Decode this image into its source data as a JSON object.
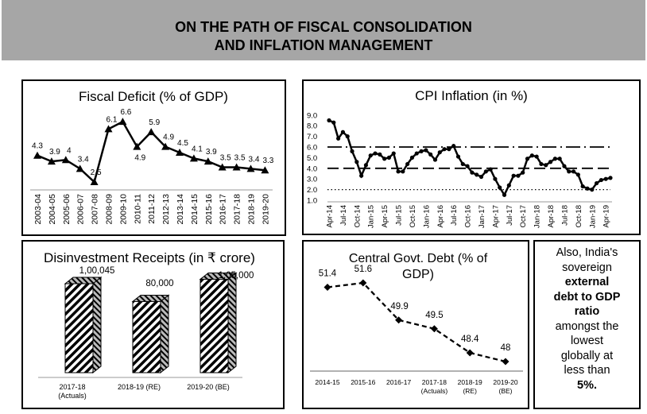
{
  "header": {
    "line1": "ON THE PATH OF FISCAL CONSOLIDATION",
    "line2": "AND INFLATION MANAGEMENT"
  },
  "note": {
    "t1": "Also, India's",
    "t2": "sovereign",
    "b1": "external",
    "b2": "debt to GDP",
    "b3": "ratio",
    "t3": "amongst the",
    "t4": "lowest",
    "t5": "globally at",
    "t6": "less than",
    "b4": "5%."
  },
  "chart_data": [
    {
      "type": "line",
      "title": "Fiscal Deficit (% of GDP)",
      "marker": "triangle",
      "categories": [
        "2003-04",
        "2004-05",
        "2005-06",
        "2006-07",
        "2007-08",
        "2008-09",
        "2009-10",
        "2010-11",
        "2011-12",
        "2012-13",
        "2013-14",
        "2014-15",
        "2015-16",
        "2016-17",
        "2017-18",
        "2018-19",
        "2019-20"
      ],
      "values": [
        4.3,
        3.9,
        4,
        3.4,
        2.5,
        6.1,
        6.6,
        4.9,
        5.9,
        4.9,
        4.5,
        4.1,
        3.9,
        3.5,
        3.5,
        3.4,
        3.3
      ],
      "labels": [
        "4.3",
        "3.9",
        "4",
        "3.4",
        "2.5",
        "6.1",
        "6.6",
        "4.9",
        "5.9",
        "4.9",
        "4.5",
        "4.1",
        "3.9",
        "3.5",
        "3.5",
        "3.4",
        "3.3"
      ]
    },
    {
      "type": "line",
      "title": "CPI Inflation (in %)",
      "ylim": [
        1,
        9
      ],
      "yticks": [
        "9.0",
        "8.0",
        "7.0",
        "6.0",
        "5.0",
        "4.0",
        "3.0",
        "2.0",
        "1.0"
      ],
      "xticks": [
        "Apr-14",
        "Jul-14",
        "Oct-14",
        "Jan-15",
        "Apr-15",
        "Jul-15",
        "Oct-15",
        "Jan-16",
        "Apr-16",
        "Jul-16",
        "Oct-16",
        "Jan-17",
        "Apr-17",
        "Jul-17",
        "Oct-17",
        "Jan-18",
        "Apr-18",
        "Jul-18",
        "Oct-18",
        "Jan-19",
        "Apr-19"
      ],
      "reference_lines": [
        {
          "value": 6,
          "style": "dash-dot"
        },
        {
          "value": 4,
          "style": "dash"
        },
        {
          "value": 2,
          "style": "dot"
        }
      ],
      "values": [
        8.5,
        8.3,
        6.8,
        7.4,
        7.0,
        5.6,
        4.6,
        3.3,
        4.3,
        5.2,
        5.4,
        5.3,
        4.9,
        5.0,
        5.4,
        3.7,
        3.7,
        4.4,
        5.0,
        5.4,
        5.6,
        5.7,
        5.3,
        4.8,
        5.5,
        5.8,
        5.8,
        6.1,
        5.1,
        4.4,
        4.2,
        3.6,
        3.4,
        3.2,
        3.7,
        3.9,
        3.0,
        2.2,
        1.5,
        2.4,
        3.3,
        3.3,
        3.6,
        4.9,
        5.2,
        5.1,
        4.4,
        4.3,
        4.6,
        4.9,
        4.9,
        4.2,
        3.7,
        3.7,
        3.4,
        2.3,
        2.1,
        2.0,
        2.6,
        2.9,
        3.0,
        3.1
      ]
    },
    {
      "type": "bar",
      "title": "Disinvestment Receipts (in ₹ crore)",
      "categories": [
        [
          "2017-18",
          "(Actuals)"
        ],
        [
          "2018-19 (RE)",
          ""
        ],
        [
          "2019-20 (BE)",
          ""
        ]
      ],
      "values": [
        100045,
        80000,
        105000
      ],
      "labels": [
        "1,00,045",
        "80,000",
        "1,05,000"
      ]
    },
    {
      "type": "line",
      "title_line1": "Central Govt. Debt (% of",
      "title_line2": "GDP)",
      "marker": "diamond",
      "categories": [
        [
          "2014-15",
          ""
        ],
        [
          "2015-16",
          ""
        ],
        [
          "2016-17",
          ""
        ],
        [
          "2017-18",
          "(Actuals)"
        ],
        [
          "2018-19",
          "(RE)"
        ],
        [
          "2019-20",
          "(BE)"
        ]
      ],
      "values": [
        51.4,
        51.6,
        49.9,
        49.5,
        48.4,
        48
      ],
      "labels": [
        "51.4",
        "51.6",
        "49.9",
        "49.5",
        "48.4",
        "48"
      ]
    }
  ]
}
